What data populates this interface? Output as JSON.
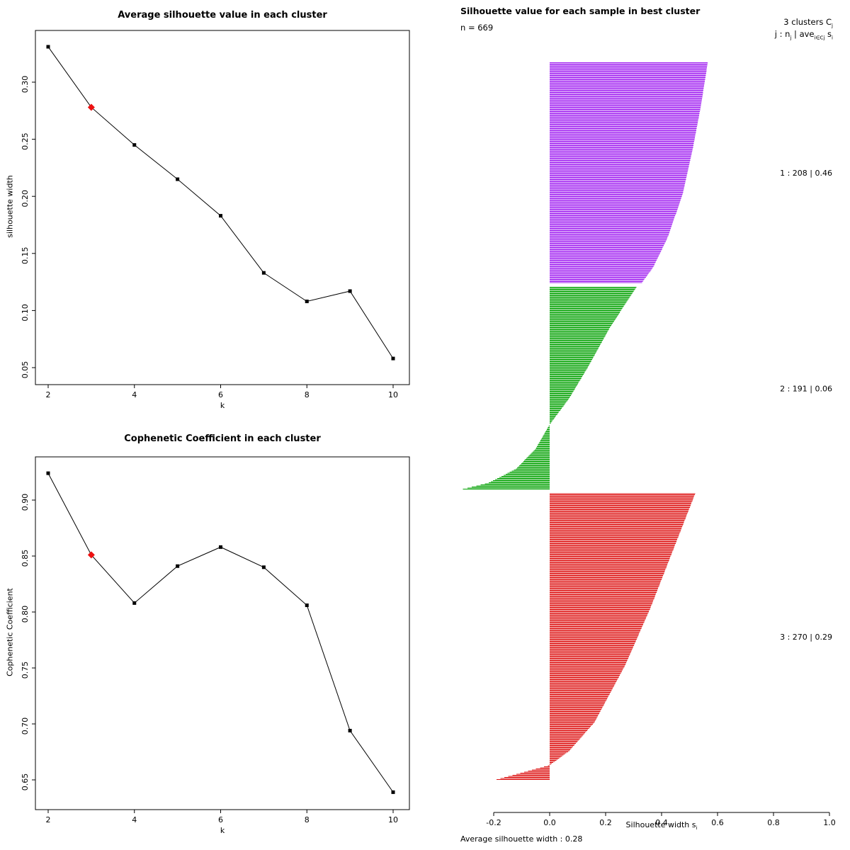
{
  "figure": {
    "background": "#ffffff",
    "panels": {
      "avg_silhouette": {
        "title": "Average silhouette value in each cluster",
        "xlabel": "k",
        "ylabel": "silhouette width"
      },
      "cophenetic": {
        "title": "Cophenetic Coefficient in each cluster",
        "xlabel": "k",
        "ylabel": "Cophenetic Coefficient"
      },
      "silhouette": {
        "title": "Silhouette value for each sample in best cluster",
        "n_label": "n = 669",
        "legend_line1": {
          "text": "3 clusters C",
          "sub": "j"
        },
        "legend_line2": {
          "p1": "j :  n",
          "s1": "j",
          "p2": " | ave",
          "s2": "i∈Cj",
          "p3": " s",
          "s3": "i"
        },
        "xlabel": {
          "text": "Silhouette width s",
          "sub": "i"
        },
        "footer": "Average silhouette width :  0.28"
      }
    }
  },
  "chart_data": [
    {
      "type": "line",
      "title": "Average silhouette value in each cluster",
      "xlabel": "k",
      "ylabel": "silhouette width",
      "x": [
        2,
        3,
        4,
        5,
        6,
        7,
        8,
        9,
        10
      ],
      "values": [
        0.331,
        0.278,
        0.245,
        0.215,
        0.183,
        0.133,
        0.108,
        0.117,
        0.058
      ],
      "marker": "filled-square",
      "line_color": "#000000",
      "highlight": {
        "x": 3,
        "value": 0.278,
        "color": "#ee1111",
        "marker": "filled-diamond"
      },
      "xticks": [
        2,
        4,
        6,
        8,
        10
      ],
      "xtick_labels": [
        "2",
        "4",
        "6",
        "8",
        "10"
      ],
      "yticks": [
        0.05,
        0.1,
        0.15,
        0.2,
        0.25,
        0.3
      ],
      "ytick_labels": [
        "0.05",
        "0.10",
        "0.15",
        "0.20",
        "0.25",
        "0.30"
      ],
      "xlim": [
        1.7,
        10.3
      ],
      "ylim": [
        0.04,
        0.345
      ],
      "grid": false
    },
    {
      "type": "line",
      "title": "Cophenetic Coefficient in each cluster",
      "xlabel": "k",
      "ylabel": "Cophenetic Coefficient",
      "x": [
        2,
        3,
        4,
        5,
        6,
        7,
        8,
        9,
        10
      ],
      "values": [
        0.924,
        0.851,
        0.808,
        0.841,
        0.858,
        0.84,
        0.806,
        0.694,
        0.639
      ],
      "marker": "filled-square",
      "line_color": "#000000",
      "highlight": {
        "x": 3,
        "value": 0.851,
        "color": "#ee1111",
        "marker": "filled-diamond"
      },
      "xticks": [
        2,
        4,
        6,
        8,
        10
      ],
      "xtick_labels": [
        "2",
        "4",
        "6",
        "8",
        "10"
      ],
      "yticks": [
        0.65,
        0.7,
        0.75,
        0.8,
        0.85,
        0.9
      ],
      "ytick_labels": [
        "0.65",
        "0.70",
        "0.75",
        "0.80",
        "0.85",
        "0.90"
      ],
      "xlim": [
        1.7,
        10.3
      ],
      "ylim": [
        0.625,
        0.935
      ],
      "grid": false
    },
    {
      "type": "silhouette-bar",
      "title": "Silhouette value for each sample in best cluster",
      "n": 669,
      "avg_width": 0.28,
      "xlabel": "Silhouette width si",
      "xticks": [
        -0.2,
        0.0,
        0.2,
        0.4,
        0.6,
        0.8,
        1.0
      ],
      "xtick_labels": [
        "-0.2",
        "0.0",
        "0.2",
        "0.4",
        "0.6",
        "0.8",
        "1.0"
      ],
      "xlim": [
        -0.32,
        1.0
      ],
      "clusters": [
        {
          "j": 1,
          "n": 208,
          "ave": 0.46,
          "color": "#A020F0",
          "label": "1 :  208  |  0.46",
          "profile": [
            [
              0,
              0.565
            ],
            [
              0.2,
              0.54
            ],
            [
              0.4,
              0.51
            ],
            [
              0.6,
              0.475
            ],
            [
              0.8,
              0.42
            ],
            [
              0.93,
              0.37
            ],
            [
              1,
              0.33
            ]
          ]
        },
        {
          "j": 2,
          "n": 191,
          "ave": 0.06,
          "color": "#00A000",
          "label": "2 :  191  |  0.06",
          "profile": [
            [
              0,
              0.31
            ],
            [
              0.2,
              0.215
            ],
            [
              0.4,
              0.135
            ],
            [
              0.55,
              0.07
            ],
            [
              0.68,
              0.0
            ],
            [
              0.8,
              -0.05
            ],
            [
              0.9,
              -0.12
            ],
            [
              0.97,
              -0.22
            ],
            [
              1,
              -0.31
            ]
          ]
        },
        {
          "j": 3,
          "n": 270,
          "ave": 0.29,
          "color": "#DD1111",
          "label": "3 :  270  |  0.29",
          "profile": [
            [
              0,
              0.52
            ],
            [
              0.2,
              0.44
            ],
            [
              0.4,
              0.36
            ],
            [
              0.6,
              0.27
            ],
            [
              0.8,
              0.16
            ],
            [
              0.9,
              0.07
            ],
            [
              0.95,
              0.0
            ],
            [
              1,
              -0.19
            ]
          ]
        }
      ]
    }
  ]
}
